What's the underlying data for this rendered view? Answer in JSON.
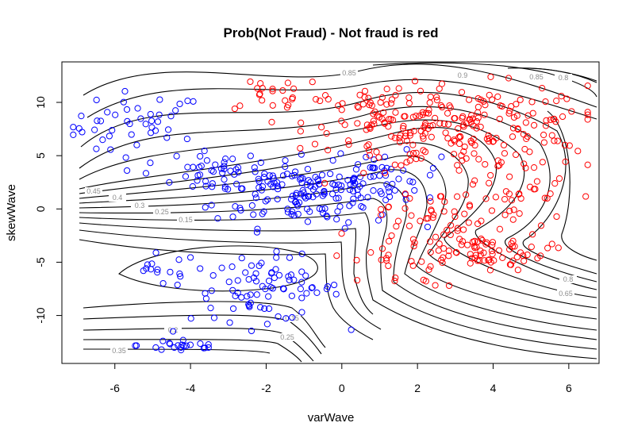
{
  "chart_data": {
    "type": "scatter",
    "title": "Prob(Not Fraud) - Not fraud is red",
    "xlabel": "varWave",
    "ylabel": "skewWave",
    "xlim": [
      -7.4,
      6.8
    ],
    "ylim": [
      -14.5,
      13.8
    ],
    "x_ticks": [
      "-6",
      "-4",
      "-2",
      "0",
      "2",
      "4",
      "6"
    ],
    "y_ticks": [
      "-10",
      "-5",
      "0",
      "5",
      "10"
    ],
    "grid": false,
    "legend": "none",
    "colors": {
      "not_fraud": "#ff0000",
      "fraud": "#0000ff",
      "contour": "#000000",
      "contour_label": "#8c8c8c"
    },
    "contour_labels": [
      "0.85",
      "0.9",
      "0.85",
      "0.8",
      "0.45",
      "0.4",
      "0.3",
      "0.25",
      "0.15",
      "0.2",
      "0.35",
      "0.15",
      "0.25",
      "0.8",
      "0.65"
    ],
    "series": [
      {
        "marker": "open-circle",
        "color": "#0000ff",
        "clusters": [
          {
            "cx": -5.4,
            "cy": 7.8,
            "sx": 0.9,
            "sy": 1.6,
            "n": 45
          },
          {
            "cx": -3.0,
            "cy": 3.2,
            "sx": 1.0,
            "sy": 0.9,
            "n": 50
          },
          {
            "cx": -1.0,
            "cy": 1.5,
            "sx": 1.2,
            "sy": 1.6,
            "n": 130
          },
          {
            "cx": 1.0,
            "cy": 2.8,
            "sx": 0.8,
            "sy": 1.2,
            "n": 45
          },
          {
            "cx": -2.0,
            "cy": -7.5,
            "sx": 1.0,
            "sy": 1.5,
            "n": 80
          },
          {
            "cx": -4.2,
            "cy": -12.8,
            "sx": 0.6,
            "sy": 0.4,
            "n": 22
          },
          {
            "cx": -4.8,
            "cy": -5.8,
            "sx": 0.5,
            "sy": 0.8,
            "n": 15
          }
        ]
      },
      {
        "marker": "open-circle",
        "color": "#ff0000",
        "clusters": [
          {
            "cx": 3.4,
            "cy": 7.5,
            "sx": 1.7,
            "sy": 2.0,
            "n": 190
          },
          {
            "cx": 1.0,
            "cy": 8.0,
            "sx": 1.0,
            "sy": 2.0,
            "n": 65
          },
          {
            "cx": -1.7,
            "cy": 11.0,
            "sx": 0.8,
            "sy": 1.0,
            "n": 22
          },
          {
            "cx": 4.3,
            "cy": 1.0,
            "sx": 0.9,
            "sy": 1.8,
            "n": 45
          },
          {
            "cx": 3.6,
            "cy": -4.0,
            "sx": 0.9,
            "sy": 0.9,
            "n": 70
          },
          {
            "cx": 1.5,
            "cy": -4.8,
            "sx": 0.9,
            "sy": 1.3,
            "n": 28
          },
          {
            "cx": 2.2,
            "cy": -0.5,
            "sx": 0.6,
            "sy": 1.2,
            "n": 28
          }
        ]
      }
    ]
  }
}
